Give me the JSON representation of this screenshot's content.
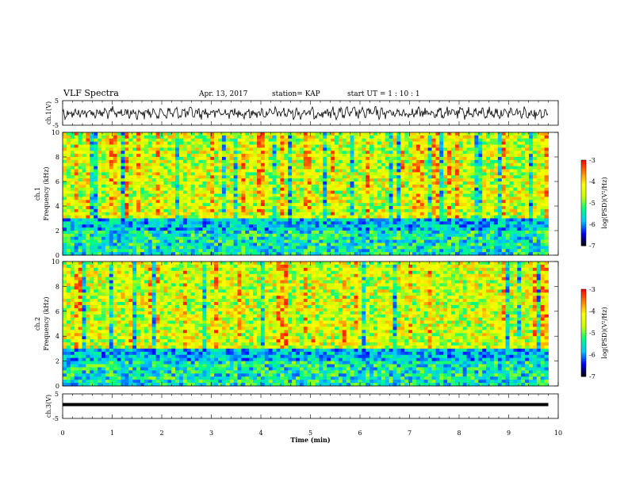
{
  "header": {
    "title": "VLF Spectra",
    "date": "Apr. 13, 2017",
    "station": "station= KAP",
    "start": "start  UT =   1 : 10 : 1"
  },
  "colors": {
    "waveform": "#000000",
    "background_band": "#7fd9c8",
    "colormap": [
      "#000000",
      "#0000ff",
      "#00c8ff",
      "#00ff80",
      "#c8ff00",
      "#ffff00",
      "#ff8000",
      "#ff0000",
      "#ffffff"
    ]
  },
  "chart_data": [
    {
      "type": "line",
      "name": "waveform-ch1",
      "ylabel": "ch.1(V)",
      "yticks": [
        "5",
        "-5"
      ],
      "ylim": [
        -5,
        5
      ],
      "xlim": [
        0,
        10
      ]
    },
    {
      "type": "heatmap",
      "name": "spectrogram-ch1",
      "ylabel_line1": "ch.1",
      "ylabel_line2": "Frequency (kHz)",
      "yticks": [
        "0",
        "2",
        "4",
        "6",
        "8",
        "10"
      ],
      "ylim": [
        0,
        10
      ],
      "xlim": [
        0,
        9.8
      ],
      "colorbar": {
        "ticks": [
          "-3",
          "-4",
          "-5",
          "-6",
          "-7"
        ],
        "range": [
          -7,
          -3
        ],
        "label": "log(PSD)(V²/Hz)"
      }
    },
    {
      "type": "heatmap",
      "name": "spectrogram-ch2",
      "ylabel_line1": "ch.2",
      "ylabel_line2": "Frequency (kHz)",
      "yticks": [
        "0",
        "2",
        "4",
        "6",
        "8",
        "10"
      ],
      "ylim": [
        0,
        10
      ],
      "xlim": [
        0,
        9.8
      ],
      "colorbar": {
        "ticks": [
          "-3",
          "-4",
          "-5",
          "-6",
          "-7"
        ],
        "range": [
          -7,
          -3
        ],
        "label": "log(PSD)(V²/Hz)"
      }
    },
    {
      "type": "line",
      "name": "waveform-ch3",
      "ylabel": "ch.3(V)",
      "yticks": [
        "5",
        "-5"
      ],
      "ylim": [
        -5,
        5
      ],
      "x": [
        0,
        9.8
      ],
      "y": [
        0,
        0
      ],
      "xlabel": "Time  (min)",
      "xticks": [
        "0",
        "1",
        "2",
        "3",
        "4",
        "5",
        "6",
        "7",
        "8",
        "9",
        "10"
      ],
      "xlim": [
        0,
        10
      ]
    }
  ]
}
